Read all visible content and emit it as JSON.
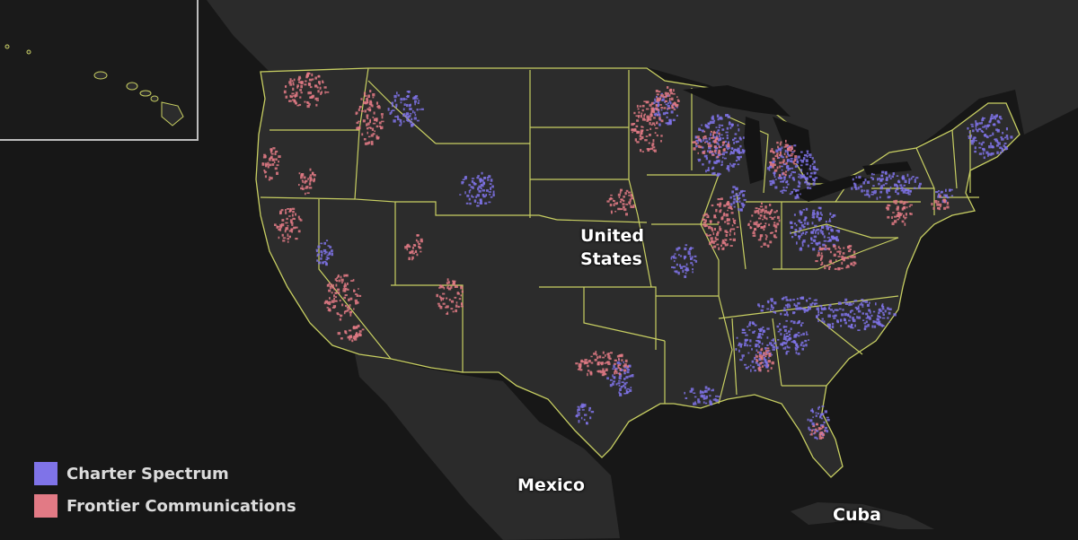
{
  "colors": {
    "background": "#1a1a1a",
    "ocean": "#171717",
    "land": "#2b2b2b",
    "us_land": "#2c2c2c",
    "state_border": "#c8cf62",
    "lakes": "#141414",
    "inset_border": "#bdbdbd"
  },
  "labels": {
    "country_us": "United\nStates",
    "mexico": "Mexico",
    "cuba": "Cuba"
  },
  "legend": {
    "items": [
      {
        "label": "Charter Spectrum",
        "color": "#7f73e8"
      },
      {
        "label": "Frontier Communications",
        "color": "#e27a85"
      }
    ]
  },
  "coverage": {
    "charter_regions": [
      "Wisconsin",
      "Michigan",
      "Ohio",
      "Kentucky",
      "Tennessee",
      "New York",
      "New England",
      "North Carolina",
      "South Carolina",
      "Alabama",
      "Georgia",
      "Missouri",
      "Texas",
      "Louisiana",
      "Florida",
      "Montana",
      "Minnesota"
    ],
    "frontier_regions": [
      "Washington",
      "Oregon",
      "Idaho",
      "California",
      "Nevada",
      "Arizona",
      "Minnesota",
      "Illinois",
      "Indiana",
      "West Virginia",
      "Texas",
      "New York",
      "Pennsylvania",
      "Connecticut",
      "Florida"
    ]
  }
}
